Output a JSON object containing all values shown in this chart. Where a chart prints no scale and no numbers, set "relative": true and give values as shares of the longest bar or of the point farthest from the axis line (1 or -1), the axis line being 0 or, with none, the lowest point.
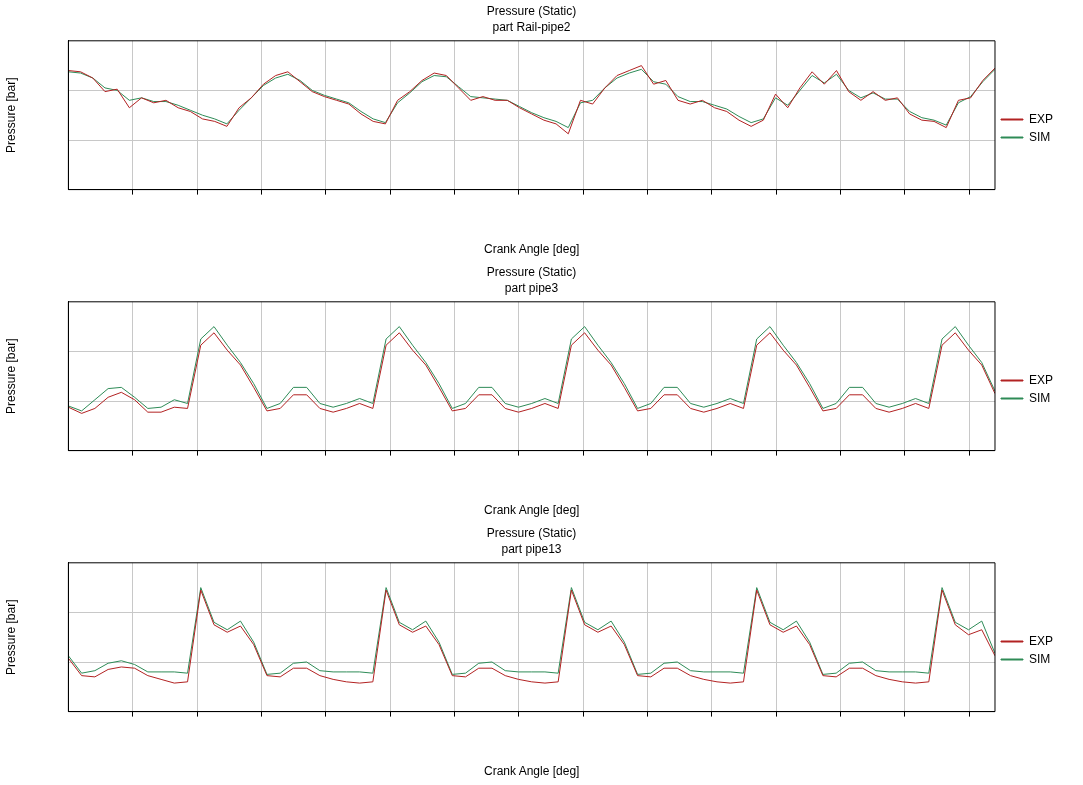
{
  "chart_data": [
    {
      "type": "line",
      "title": "Pressure (Static)",
      "subtitle": "part Rail-pipe2",
      "xlabel": "Crank Angle [deg]",
      "ylabel": "Pressure [bar]",
      "relative": true,
      "grid": true,
      "legend": "right",
      "tick_labels": false,
      "marker": "none",
      "line_style": "solid",
      "categories": [
        null,
        null,
        null,
        null,
        null,
        null,
        null,
        null,
        null,
        null,
        null,
        null,
        null,
        null,
        null,
        null,
        null,
        null,
        null,
        null,
        null,
        null,
        null,
        null,
        null,
        null,
        null,
        null,
        null,
        null,
        null,
        null,
        null,
        null,
        null,
        null,
        null,
        null,
        null,
        null,
        null,
        null,
        null,
        null,
        null,
        null,
        null,
        null,
        null,
        null,
        null,
        null,
        null,
        null,
        null,
        null,
        null,
        null,
        null,
        null,
        null,
        null,
        null,
        null,
        null,
        null,
        null,
        null,
        null,
        null,
        null,
        null,
        null,
        null,
        null,
        null,
        null
      ],
      "series": [
        {
          "name": "EXP",
          "color": "#b22222",
          "values": [
            0.96,
            0.95,
            0.9,
            0.79,
            0.81,
            0.66,
            0.74,
            0.7,
            0.72,
            0.66,
            0.63,
            0.57,
            0.55,
            0.51,
            0.66,
            0.74,
            0.85,
            0.92,
            0.95,
            0.87,
            0.79,
            0.75,
            0.72,
            0.69,
            0.61,
            0.55,
            0.53,
            0.72,
            0.79,
            0.88,
            0.94,
            0.92,
            0.82,
            0.72,
            0.75,
            0.72,
            0.72,
            0.66,
            0.61,
            0.56,
            0.53,
            0.45,
            0.72,
            0.69,
            0.82,
            0.92,
            0.96,
            1,
            0.85,
            0.88,
            0.72,
            0.69,
            0.72,
            0.66,
            0.63,
            0.56,
            0.51,
            0.56,
            0.77,
            0.66,
            0.82,
            0.95,
            0.85,
            0.96,
            0.79,
            0.72,
            0.79,
            0.72,
            0.74,
            0.61,
            0.56,
            0.55,
            0.5,
            0.72,
            0.74,
            0.88,
            0.98
          ]
        },
        {
          "name": "SIM",
          "color": "#2e8b57",
          "values": [
            0.95,
            0.94,
            0.9,
            0.82,
            0.8,
            0.72,
            0.74,
            0.71,
            0.71,
            0.68,
            0.64,
            0.6,
            0.57,
            0.53,
            0.64,
            0.74,
            0.84,
            0.9,
            0.93,
            0.88,
            0.8,
            0.76,
            0.73,
            0.7,
            0.63,
            0.57,
            0.54,
            0.7,
            0.78,
            0.87,
            0.92,
            0.91,
            0.83,
            0.75,
            0.74,
            0.73,
            0.72,
            0.67,
            0.62,
            0.58,
            0.55,
            0.5,
            0.7,
            0.72,
            0.82,
            0.9,
            0.94,
            0.97,
            0.87,
            0.85,
            0.75,
            0.71,
            0.71,
            0.68,
            0.65,
            0.59,
            0.54,
            0.57,
            0.74,
            0.68,
            0.8,
            0.92,
            0.86,
            0.93,
            0.8,
            0.74,
            0.78,
            0.73,
            0.73,
            0.63,
            0.58,
            0.56,
            0.52,
            0.7,
            0.75,
            0.87,
            0.97
          ]
        }
      ]
    },
    {
      "type": "line",
      "title": "Pressure (Static)",
      "subtitle": "part pipe3",
      "xlabel": "Crank Angle [deg]",
      "ylabel": "Pressure [bar]",
      "relative": true,
      "grid": true,
      "legend": "right",
      "tick_labels": false,
      "marker": "none",
      "line_style": "solid",
      "categories": [
        null,
        null,
        null,
        null,
        null,
        null,
        null,
        null,
        null,
        null,
        null,
        null,
        null,
        null,
        null,
        null,
        null,
        null,
        null,
        null,
        null,
        null,
        null,
        null,
        null,
        null,
        null,
        null,
        null,
        null,
        null,
        null,
        null,
        null,
        null,
        null,
        null,
        null,
        null,
        null,
        null,
        null,
        null,
        null,
        null,
        null,
        null,
        null,
        null,
        null,
        null,
        null,
        null,
        null,
        null,
        null,
        null,
        null,
        null,
        null,
        null,
        null,
        null,
        null,
        null,
        null,
        null,
        null,
        null,
        null,
        null
      ],
      "series": [
        {
          "name": "EXP",
          "color": "#b22222",
          "values": [
            0.35,
            0.3,
            0.34,
            0.43,
            0.47,
            0.41,
            0.31,
            0.31,
            0.35,
            0.34,
            0.85,
            0.95,
            0.81,
            0.69,
            0.51,
            0.32,
            0.34,
            0.45,
            0.45,
            0.34,
            0.31,
            0.34,
            0.38,
            0.34,
            0.85,
            0.95,
            0.81,
            0.69,
            0.51,
            0.32,
            0.34,
            0.45,
            0.45,
            0.34,
            0.31,
            0.34,
            0.38,
            0.34,
            0.85,
            0.95,
            0.81,
            0.69,
            0.51,
            0.32,
            0.34,
            0.45,
            0.45,
            0.34,
            0.31,
            0.34,
            0.38,
            0.34,
            0.85,
            0.95,
            0.81,
            0.69,
            0.51,
            0.32,
            0.34,
            0.45,
            0.45,
            0.34,
            0.31,
            0.34,
            0.38,
            0.34,
            0.85,
            0.95,
            0.81,
            0.69,
            0.46
          ]
        },
        {
          "name": "SIM",
          "color": "#2e8b57",
          "values": [
            0.36,
            0.32,
            0.41,
            0.5,
            0.51,
            0.43,
            0.34,
            0.35,
            0.41,
            0.38,
            0.9,
            1,
            0.85,
            0.71,
            0.54,
            0.34,
            0.38,
            0.51,
            0.51,
            0.38,
            0.35,
            0.38,
            0.42,
            0.38,
            0.9,
            1,
            0.85,
            0.71,
            0.54,
            0.34,
            0.38,
            0.51,
            0.51,
            0.38,
            0.35,
            0.38,
            0.42,
            0.38,
            0.9,
            1,
            0.85,
            0.71,
            0.54,
            0.34,
            0.38,
            0.51,
            0.51,
            0.38,
            0.35,
            0.38,
            0.42,
            0.38,
            0.9,
            1,
            0.85,
            0.71,
            0.54,
            0.34,
            0.38,
            0.51,
            0.51,
            0.38,
            0.35,
            0.38,
            0.42,
            0.38,
            0.9,
            1,
            0.85,
            0.71,
            0.48
          ]
        }
      ]
    },
    {
      "type": "line",
      "title": "Pressure (Static)",
      "subtitle": "part pipe13",
      "xlabel": "Crank Angle [deg]",
      "ylabel": "Pressure [bar]",
      "relative": true,
      "grid": true,
      "legend": "right",
      "tick_labels": false,
      "marker": "none",
      "line_style": "solid",
      "categories": [
        null,
        null,
        null,
        null,
        null,
        null,
        null,
        null,
        null,
        null,
        null,
        null,
        null,
        null,
        null,
        null,
        null,
        null,
        null,
        null,
        null,
        null,
        null,
        null,
        null,
        null,
        null,
        null,
        null,
        null,
        null,
        null,
        null,
        null,
        null,
        null,
        null,
        null,
        null,
        null,
        null,
        null,
        null,
        null,
        null,
        null,
        null,
        null,
        null,
        null,
        null,
        null,
        null,
        null,
        null,
        null,
        null,
        null,
        null,
        null,
        null,
        null,
        null,
        null,
        null,
        null,
        null,
        null,
        null,
        null,
        null
      ],
      "series": [
        {
          "name": "EXP",
          "color": "#b22222",
          "values": [
            0.43,
            0.29,
            0.28,
            0.34,
            0.36,
            0.35,
            0.29,
            0.26,
            0.23,
            0.24,
            0.98,
            0.7,
            0.64,
            0.69,
            0.54,
            0.29,
            0.28,
            0.35,
            0.35,
            0.29,
            0.26,
            0.24,
            0.23,
            0.24,
            0.98,
            0.7,
            0.64,
            0.69,
            0.54,
            0.29,
            0.28,
            0.35,
            0.35,
            0.29,
            0.26,
            0.24,
            0.23,
            0.24,
            0.98,
            0.7,
            0.64,
            0.69,
            0.54,
            0.29,
            0.28,
            0.35,
            0.35,
            0.29,
            0.26,
            0.24,
            0.23,
            0.24,
            0.98,
            0.7,
            0.64,
            0.69,
            0.54,
            0.29,
            0.28,
            0.35,
            0.35,
            0.29,
            0.26,
            0.24,
            0.23,
            0.24,
            0.98,
            0.7,
            0.62,
            0.66,
            0.45
          ]
        },
        {
          "name": "SIM",
          "color": "#2e8b57",
          "values": [
            0.45,
            0.31,
            0.33,
            0.39,
            0.41,
            0.38,
            0.32,
            0.32,
            0.32,
            0.31,
            1,
            0.72,
            0.66,
            0.73,
            0.56,
            0.3,
            0.31,
            0.39,
            0.4,
            0.33,
            0.32,
            0.32,
            0.32,
            0.31,
            1,
            0.72,
            0.66,
            0.73,
            0.56,
            0.3,
            0.31,
            0.39,
            0.4,
            0.33,
            0.32,
            0.32,
            0.32,
            0.31,
            1,
            0.72,
            0.66,
            0.73,
            0.56,
            0.3,
            0.31,
            0.39,
            0.4,
            0.33,
            0.32,
            0.32,
            0.32,
            0.31,
            1,
            0.72,
            0.66,
            0.73,
            0.56,
            0.3,
            0.31,
            0.39,
            0.4,
            0.33,
            0.32,
            0.32,
            0.32,
            0.31,
            1,
            0.72,
            0.66,
            0.73,
            0.47
          ]
        }
      ]
    }
  ]
}
